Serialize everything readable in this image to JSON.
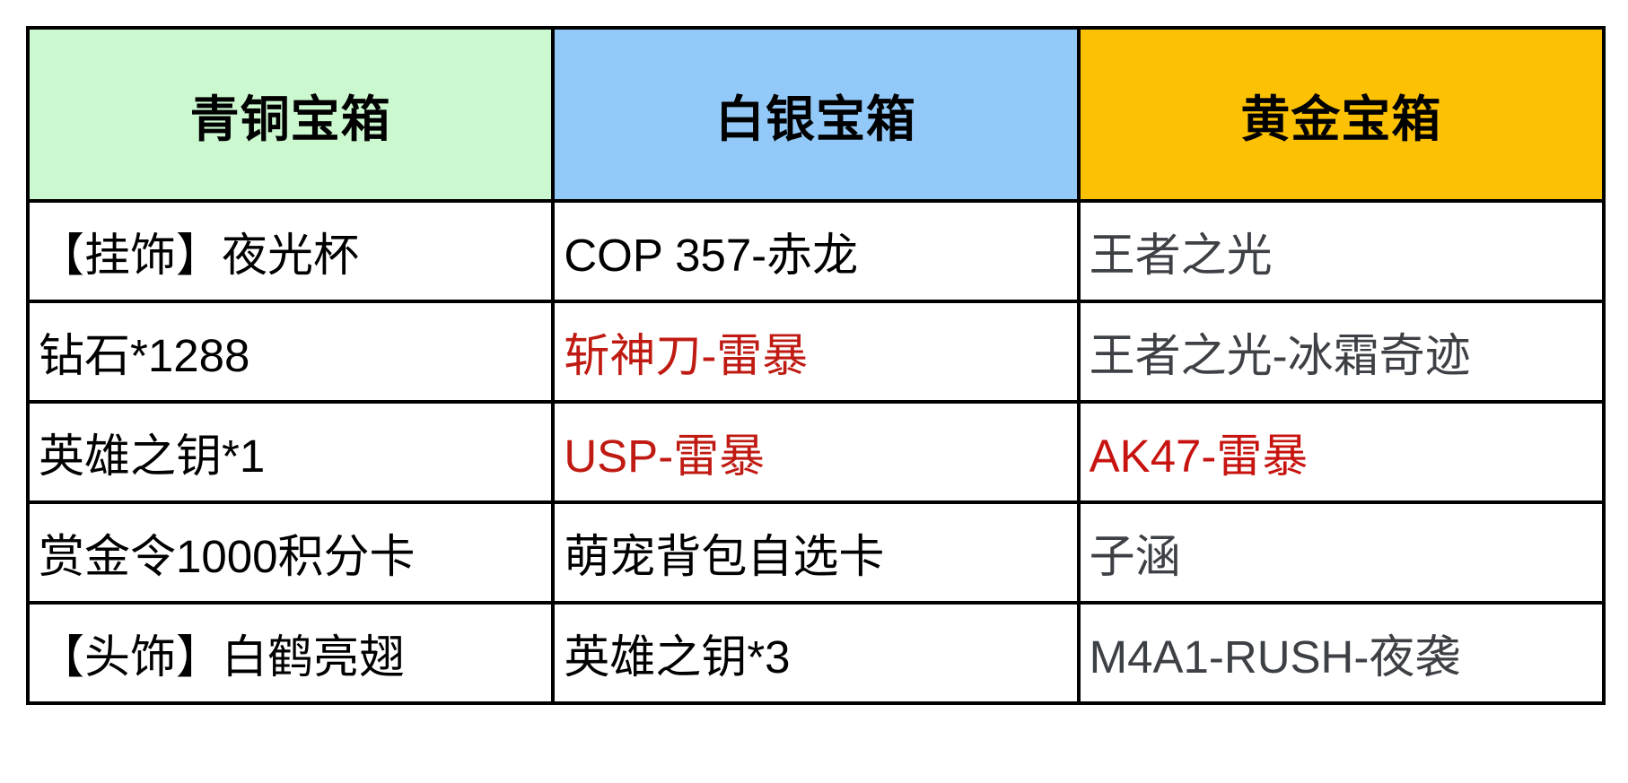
{
  "table": {
    "title_semantics": "chest-rewards-table",
    "border_color": "#000000",
    "headers": [
      {
        "label": "青铜宝箱",
        "bg": "#ccf8d0",
        "color": "#000000"
      },
      {
        "label": "白银宝箱",
        "bg": "#93c9f8",
        "color": "#000000"
      },
      {
        "label": "黄金宝箱",
        "bg": "#fcc103",
        "color": "#000000"
      }
    ],
    "rows": [
      {
        "cells": [
          {
            "text": "【挂饰】夜光杯",
            "color": "#000000"
          },
          {
            "text": "COP 357-赤龙",
            "color": "#000000"
          },
          {
            "text": "王者之光",
            "color": "#3d4045"
          }
        ]
      },
      {
        "cells": [
          {
            "text": "钻石*1288",
            "color": "#000000"
          },
          {
            "text": "斩神刀-雷暴",
            "color": "#bf1b13"
          },
          {
            "text": "王者之光-冰霜奇迹",
            "color": "#3d4045"
          }
        ]
      },
      {
        "cells": [
          {
            "text": "英雄之钥*1",
            "color": "#000000"
          },
          {
            "text": "USP-雷暴",
            "color": "#bf1b13"
          },
          {
            "text": "AK47-雷暴",
            "color": "#c71410"
          }
        ]
      },
      {
        "cells": [
          {
            "text": "赏金令1000积分卡",
            "color": "#000000"
          },
          {
            "text": "萌宠背包自选卡",
            "color": "#000000"
          },
          {
            "text": "子涵",
            "color": "#3d4045"
          }
        ]
      },
      {
        "cells": [
          {
            "text": "【头饰】白鹤亮翅",
            "color": "#000000"
          },
          {
            "text": "英雄之钥*3",
            "color": "#000000"
          },
          {
            "text": "M4A1-RUSH-夜袭",
            "color": "#3d4045"
          }
        ]
      }
    ]
  }
}
